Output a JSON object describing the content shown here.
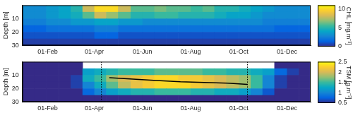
{
  "chart_data": [
    {
      "type": "heatmap",
      "x_edges": [
        0,
        15,
        30,
        46,
        61,
        76,
        91,
        106,
        121,
        137,
        152,
        167,
        182,
        197,
        213,
        228,
        243,
        258,
        274,
        289,
        304,
        319,
        335,
        350,
        365
      ],
      "y_edges": [
        0,
        5,
        10,
        15,
        20,
        25,
        30
      ],
      "cells": [
        [
          3,
          3,
          3.5,
          4,
          5,
          8,
          10,
          10,
          8,
          6,
          6,
          6.5,
          6,
          6,
          5.5,
          6,
          5,
          5,
          4.5,
          4,
          3.5,
          3,
          3,
          3
        ],
        [
          3,
          3,
          3.5,
          4,
          4.5,
          6,
          8,
          7,
          6,
          5,
          5,
          5.5,
          5.5,
          5,
          5,
          5,
          4.5,
          4,
          4,
          3.5,
          3,
          3,
          3,
          3
        ],
        [
          2.5,
          2.5,
          3,
          3,
          3.5,
          3.5,
          4,
          4,
          3.5,
          3.5,
          3,
          3,
          3,
          3,
          3,
          3,
          3,
          3,
          3,
          3,
          2.5,
          2.5,
          2.5,
          2.5
        ],
        [
          1.5,
          1.5,
          2,
          2,
          2,
          2,
          2.5,
          2.5,
          2,
          2,
          2,
          2,
          2,
          2,
          2,
          2,
          2,
          2,
          2,
          2,
          2,
          1.5,
          1.5,
          1.5
        ],
        [
          1,
          1,
          1,
          1,
          1,
          1,
          1.5,
          1.5,
          1,
          1,
          1,
          1,
          1,
          1,
          1,
          1,
          1,
          1,
          1,
          1,
          1,
          1,
          1,
          1
        ],
        [
          0.5,
          0.5,
          0.5,
          0.5,
          0.5,
          0.5,
          0.5,
          0.5,
          0.5,
          0.5,
          0.5,
          0.5,
          0.5,
          0.5,
          0.5,
          0.5,
          0.5,
          0.5,
          0.5,
          0.5,
          0.5,
          0.5,
          0.5,
          0.5
        ]
      ],
      "xlim": [
        0,
        365
      ],
      "xticks": [
        {
          "value": 32,
          "label": "01-Feb"
        },
        {
          "value": 91,
          "label": "01-Apr"
        },
        {
          "value": 152,
          "label": "01-Jun"
        },
        {
          "value": 213,
          "label": "01-Aug"
        },
        {
          "value": 274,
          "label": "01-Oct"
        },
        {
          "value": 335,
          "label": "01-Dec"
        }
      ],
      "ylim": [
        0,
        30
      ],
      "yticks": [
        10,
        20,
        30
      ],
      "ylabel": "Depth [m]",
      "grid": false,
      "colorbar": {
        "label": "CHL [mg.m⁻³]",
        "range": [
          0,
          11
        ],
        "ticks": [
          0,
          5,
          10
        ]
      }
    },
    {
      "type": "heatmap",
      "x_edges": [
        0,
        15,
        30,
        46,
        61,
        76,
        91,
        106,
        121,
        137,
        152,
        167,
        182,
        197,
        213,
        228,
        243,
        258,
        274,
        289,
        304,
        319,
        335,
        350,
        365
      ],
      "y_edges": [
        0,
        5,
        10,
        15,
        20,
        25,
        30
      ],
      "cells": [
        [
          0.5,
          0.5,
          0.5,
          0.5,
          0.5,
          null,
          null,
          null,
          null,
          null,
          null,
          null,
          null,
          null,
          null,
          null,
          null,
          null,
          null,
          null,
          null,
          0.5,
          0.5,
          0.5
        ],
        [
          0.5,
          0.5,
          0.5,
          0.5,
          0.5,
          1.2,
          1.3,
          1.4,
          1.5,
          1.5,
          1.5,
          1.6,
          1.6,
          1.6,
          1.6,
          1.5,
          1.5,
          1.4,
          1.4,
          1.3,
          1.2,
          0.8,
          0.6,
          0.5
        ],
        [
          0.5,
          0.5,
          0.5,
          0.5,
          0.6,
          1.3,
          1.5,
          1.8,
          2.0,
          2.1,
          2.2,
          2.3,
          2.3,
          2.2,
          2.2,
          2.1,
          2.0,
          1.9,
          1.8,
          1.5,
          1.0,
          0.6,
          0.5,
          0.5
        ],
        [
          0.5,
          0.5,
          0.5,
          0.5,
          0.6,
          1.0,
          1.3,
          1.6,
          1.9,
          2.1,
          2.2,
          2.3,
          2.3,
          2.3,
          2.2,
          2.1,
          2.0,
          1.9,
          1.8,
          1.5,
          1.0,
          0.6,
          0.5,
          0.5
        ],
        [
          0.5,
          0.5,
          0.5,
          0.5,
          0.5,
          0.8,
          1.0,
          1.2,
          1.3,
          1.4,
          1.4,
          1.5,
          1.5,
          1.5,
          1.4,
          1.4,
          1.3,
          1.3,
          1.2,
          1.0,
          0.7,
          0.5,
          0.5,
          0.5
        ],
        [
          0.5,
          0.5,
          0.5,
          0.5,
          0.5,
          0.5,
          0.5,
          0.5,
          0.5,
          0.5,
          0.5,
          0.5,
          0.5,
          0.5,
          0.5,
          0.5,
          0.5,
          0.5,
          0.5,
          0.5,
          0.5,
          0.5,
          0.5,
          0.5
        ]
      ],
      "line": {
        "x": [
          110,
          140,
          170,
          200,
          230,
          260,
          285
        ],
        "y": [
          12,
          13,
          14,
          15,
          15.5,
          16,
          17
        ]
      },
      "vlines": [
        100,
        285
      ],
      "xlim": [
        0,
        365
      ],
      "xticks": [
        {
          "value": 32,
          "label": "01-Feb"
        },
        {
          "value": 91,
          "label": "01-Apr"
        },
        {
          "value": 152,
          "label": "01-Jun"
        },
        {
          "value": 213,
          "label": "01-Aug"
        },
        {
          "value": 274,
          "label": "01-Oct"
        },
        {
          "value": 335,
          "label": "01-Dec"
        }
      ],
      "ylim": [
        0,
        30
      ],
      "yticks": [
        10,
        20,
        30
      ],
      "ylabel": "Depth [m]",
      "grid": false,
      "colorbar": {
        "label": "TSM [g.m⁻³]",
        "range": [
          0.5,
          2.5
        ],
        "ticks": [
          0.5,
          1,
          1.5,
          2,
          2.5
        ]
      }
    }
  ]
}
